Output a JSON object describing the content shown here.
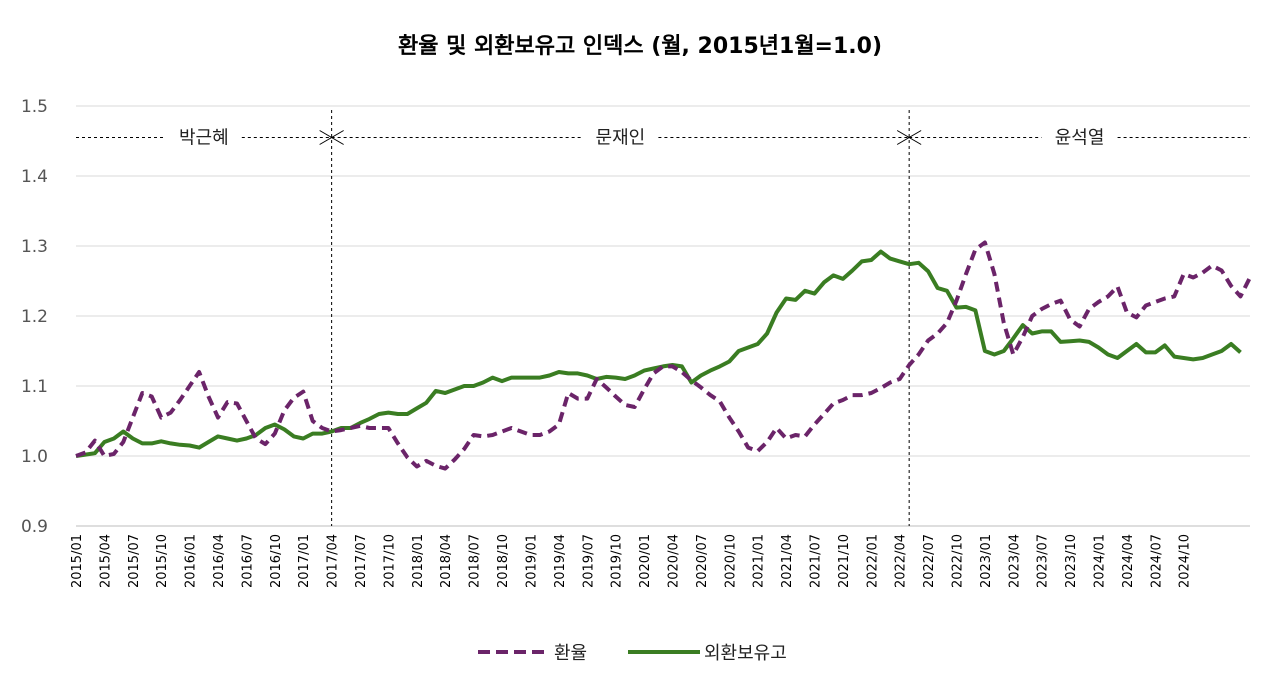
{
  "chart_data": {
    "type": "line",
    "title": "환율 및 외환보유고 인덱스 (월, 2015년1월=1.0)",
    "ylim": [
      0.9,
      1.5
    ],
    "yticks": [
      "0.9",
      "1.0",
      "1.1",
      "1.2",
      "1.3",
      "1.4",
      "1.5"
    ],
    "grid": true,
    "legend_position": "bottom",
    "x_start": "2015/01",
    "x_labels": [
      "2015/01",
      "2015/04",
      "2015/07",
      "2015/10",
      "2016/01",
      "2016/04",
      "2016/07",
      "2016/10",
      "2017/01",
      "2017/04",
      "2017/07",
      "2017/10",
      "2018/01",
      "2018/04",
      "2018/07",
      "2018/10",
      "2019/01",
      "2019/04",
      "2019/07",
      "2019/10",
      "2020/01",
      "2020/04",
      "2020/07",
      "2020/10",
      "2021/01",
      "2021/04",
      "2021/07",
      "2021/10",
      "2022/01",
      "2022/04",
      "2022/07",
      "2022/10",
      "2023/01",
      "2023/04",
      "2023/07",
      "2023/10",
      "2024/01",
      "2024/04",
      "2024/07",
      "2024/10"
    ],
    "periods": [
      {
        "name": "박근혜",
        "start": "2015/01",
        "end": "2017/04"
      },
      {
        "name": "문재인",
        "start": "2017/04",
        "end": "2022/05"
      },
      {
        "name": "윤석열",
        "start": "2022/05",
        "end": "2024/10"
      }
    ],
    "period_boundaries": [
      "2017/04",
      "2022/05"
    ],
    "series": [
      {
        "name": "환율",
        "color": "#6b2469",
        "style": "dashed",
        "values": [
          1.0,
          1.005,
          1.022,
          1.0,
          1.003,
          1.02,
          1.055,
          1.09,
          1.085,
          1.055,
          1.062,
          1.08,
          1.1,
          1.12,
          1.085,
          1.055,
          1.077,
          1.075,
          1.05,
          1.025,
          1.017,
          1.032,
          1.065,
          1.083,
          1.092,
          1.05,
          1.04,
          1.035,
          1.037,
          1.04,
          1.043,
          1.04,
          1.04,
          1.04,
          1.018,
          0.998,
          0.985,
          0.993,
          0.986,
          0.982,
          0.995,
          1.01,
          1.03,
          1.028,
          1.03,
          1.035,
          1.04,
          1.035,
          1.03,
          1.03,
          1.035,
          1.045,
          1.09,
          1.082,
          1.082,
          1.11,
          1.098,
          1.085,
          1.073,
          1.07,
          1.095,
          1.118,
          1.128,
          1.128,
          1.12,
          1.108,
          1.098,
          1.087,
          1.078,
          1.055,
          1.035,
          1.012,
          1.007,
          1.02,
          1.04,
          1.025,
          1.03,
          1.028,
          1.045,
          1.06,
          1.075,
          1.08,
          1.087,
          1.087,
          1.09,
          1.097,
          1.105,
          1.11,
          1.13,
          1.145,
          1.165,
          1.175,
          1.19,
          1.222,
          1.26,
          1.295,
          1.305,
          1.26,
          1.19,
          1.145,
          1.17,
          1.2,
          1.21,
          1.217,
          1.222,
          1.195,
          1.185,
          1.21,
          1.22,
          1.228,
          1.242,
          1.205,
          1.198,
          1.215,
          1.22,
          1.225,
          1.228,
          1.26,
          1.255,
          1.262,
          1.272,
          1.265,
          1.243,
          1.228,
          1.255
        ]
      },
      {
        "name": "외환보유고",
        "color": "#3a7d22",
        "style": "solid",
        "values": [
          1.0,
          1.002,
          1.004,
          1.02,
          1.025,
          1.035,
          1.025,
          1.018,
          1.018,
          1.021,
          1.018,
          1.016,
          1.015,
          1.012,
          1.02,
          1.028,
          1.025,
          1.022,
          1.025,
          1.03,
          1.04,
          1.045,
          1.038,
          1.028,
          1.025,
          1.032,
          1.032,
          1.035,
          1.04,
          1.04,
          1.047,
          1.053,
          1.06,
          1.062,
          1.06,
          1.06,
          1.068,
          1.076,
          1.093,
          1.09,
          1.095,
          1.1,
          1.1,
          1.105,
          1.112,
          1.107,
          1.112,
          1.112,
          1.112,
          1.112,
          1.115,
          1.12,
          1.118,
          1.118,
          1.115,
          1.11,
          1.113,
          1.112,
          1.11,
          1.115,
          1.122,
          1.125,
          1.128,
          1.13,
          1.128,
          1.105,
          1.115,
          1.122,
          1.128,
          1.135,
          1.15,
          1.155,
          1.16,
          1.175,
          1.205,
          1.225,
          1.223,
          1.236,
          1.232,
          1.248,
          1.258,
          1.253,
          1.265,
          1.278,
          1.28,
          1.292,
          1.282,
          1.278,
          1.274,
          1.276,
          1.264,
          1.24,
          1.236,
          1.212,
          1.213,
          1.208,
          1.15,
          1.145,
          1.15,
          1.168,
          1.187,
          1.175,
          1.178,
          1.178,
          1.163,
          1.164,
          1.165,
          1.163,
          1.155,
          1.145,
          1.14,
          1.15,
          1.16,
          1.148,
          1.148,
          1.158,
          1.142,
          1.14,
          1.138,
          1.14,
          1.145,
          1.15,
          1.16,
          1.148
        ]
      }
    ]
  }
}
